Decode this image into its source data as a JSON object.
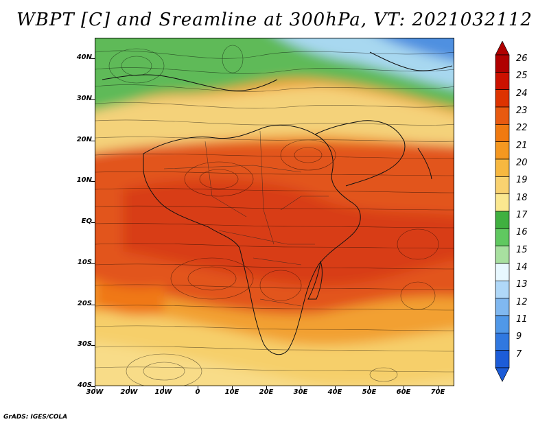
{
  "title": "WBPT [C] and Sreamline at 300hPa, VT: 2021032112",
  "credit": "GrADS: IGES/COLA",
  "map": {
    "projection": "latlon",
    "lon_range": [
      -30,
      75
    ],
    "lat_range": [
      -40,
      45
    ],
    "latitude_labels": [
      "40N",
      "30N",
      "20N",
      "10N",
      "EQ",
      "10S",
      "20S",
      "30S",
      "40S"
    ],
    "longitude_labels": [
      "30W",
      "20W",
      "10W",
      "0",
      "10E",
      "20E",
      "30E",
      "40E",
      "50E",
      "60E",
      "70E"
    ],
    "overlays": [
      "coastlines",
      "country-borders",
      "streamlines"
    ]
  },
  "colorbar": {
    "orientation": "vertical",
    "extend": "both",
    "levels": [
      "26",
      "25",
      "24",
      "23",
      "22",
      "21",
      "20",
      "19",
      "18",
      "17",
      "16",
      "15",
      "14",
      "13",
      "12",
      "11",
      "9",
      "7"
    ],
    "colors": [
      "#b00000",
      "#cc1100",
      "#dd3300",
      "#e85a10",
      "#f07a10",
      "#f59820",
      "#f7b840",
      "#f9d270",
      "#fbe890",
      "#40b040",
      "#60c860",
      "#a8e0a0",
      "#e8f8ff",
      "#b0d8f8",
      "#80b8f0",
      "#5098e8",
      "#3078e0",
      "#1c5cd8"
    ]
  }
}
